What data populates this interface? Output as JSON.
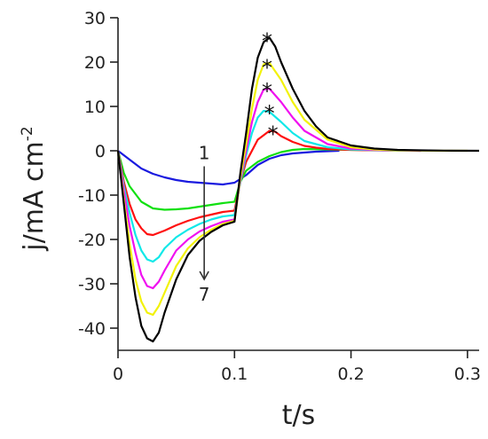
{
  "chart_data": {
    "type": "line",
    "xlabel": "t/s",
    "ylabel_main": "j/mA cm",
    "ylabel_sup": "-2",
    "xlim": [
      0,
      0.31
    ],
    "ylim": [
      -45,
      30
    ],
    "xticks": [
      0,
      0.1,
      0.2,
      0.3
    ],
    "xtick_labels": [
      "0",
      "0.1",
      "0.2",
      "0.3"
    ],
    "yticks": [
      -40,
      -30,
      -20,
      -10,
      0,
      10,
      20,
      30
    ],
    "ytick_labels": [
      "-40",
      "-30",
      "-20",
      "-10",
      "0",
      "10",
      "20",
      "30"
    ],
    "grid": false,
    "annotations": {
      "arrow_start_label": "1",
      "arrow_end_label": "7",
      "peak_marker": "*"
    },
    "arrow": {
      "x": 0.074,
      "y_from": -3.5,
      "y_to": -29
    },
    "series": [
      {
        "color": "#1a1adf",
        "x": [
          0,
          0.01,
          0.02,
          0.03,
          0.04,
          0.05,
          0.06,
          0.07,
          0.08,
          0.09,
          0.1,
          0.11,
          0.12,
          0.13,
          0.14,
          0.15,
          0.16,
          0.17,
          0.18,
          0.19
        ],
        "y": [
          0,
          -2,
          -4,
          -5.2,
          -6,
          -6.6,
          -7,
          -7.2,
          -7.4,
          -7.6,
          -7.2,
          -5.5,
          -3.2,
          -1.8,
          -1.0,
          -0.6,
          -0.4,
          -0.2,
          -0.1,
          0
        ]
      },
      {
        "color": "#10e010",
        "x": [
          0,
          0.005,
          0.01,
          0.02,
          0.03,
          0.04,
          0.05,
          0.06,
          0.07,
          0.08,
          0.09,
          0.1,
          0.105,
          0.11,
          0.12,
          0.13,
          0.14,
          0.15,
          0.16,
          0.18,
          0.2,
          0.22,
          0.24,
          0.26
        ],
        "y": [
          0,
          -5,
          -8,
          -11.5,
          -13,
          -13.3,
          -13.2,
          -13,
          -12.6,
          -12.2,
          -11.8,
          -11.5,
          -7,
          -4.5,
          -2.5,
          -1.2,
          -0.3,
          0.2,
          0.4,
          0.3,
          0.2,
          0.15,
          0.1,
          0.05
        ]
      },
      {
        "color": "#ff1010",
        "x": [
          0,
          0.005,
          0.01,
          0.015,
          0.02,
          0.025,
          0.03,
          0.04,
          0.05,
          0.06,
          0.07,
          0.08,
          0.09,
          0.1,
          0.105,
          0.11,
          0.12,
          0.13,
          0.135,
          0.14,
          0.15,
          0.16,
          0.17,
          0.18,
          0.2,
          0.22,
          0.24,
          0.26
        ],
        "y": [
          0,
          -7,
          -12,
          -15.5,
          -17.5,
          -18.8,
          -19,
          -18,
          -16.8,
          -15.8,
          -15,
          -14.4,
          -13.8,
          -13.5,
          -7,
          -2.5,
          2.5,
          4.5,
          4.3,
          3.3,
          2,
          1.1,
          0.7,
          0.4,
          0.2,
          0.1,
          0.05,
          0
        ]
      },
      {
        "color": "#10e8e8",
        "x": [
          0,
          0.005,
          0.01,
          0.015,
          0.02,
          0.025,
          0.03,
          0.035,
          0.04,
          0.05,
          0.06,
          0.07,
          0.08,
          0.09,
          0.1,
          0.105,
          0.11,
          0.115,
          0.12,
          0.125,
          0.13,
          0.14,
          0.15,
          0.16,
          0.18,
          0.2,
          0.22,
          0.24,
          0.26
        ],
        "y": [
          0,
          -8,
          -14,
          -19,
          -22.5,
          -24.5,
          -25,
          -24,
          -22,
          -19.5,
          -17.8,
          -16.5,
          -15.5,
          -14.8,
          -14.5,
          -7,
          -1,
          4,
          7.5,
          9,
          8.8,
          6.5,
          4,
          2.2,
          0.8,
          0.3,
          0.15,
          0.05,
          0
        ]
      },
      {
        "color": "#f010f0",
        "x": [
          0,
          0.005,
          0.01,
          0.015,
          0.02,
          0.025,
          0.03,
          0.035,
          0.04,
          0.05,
          0.06,
          0.07,
          0.08,
          0.09,
          0.1,
          0.105,
          0.11,
          0.115,
          0.12,
          0.125,
          0.13,
          0.14,
          0.15,
          0.16,
          0.18,
          0.2,
          0.22,
          0.24,
          0.26
        ],
        "y": [
          0,
          -9,
          -17,
          -23,
          -28,
          -30.5,
          -31,
          -29.5,
          -27,
          -22.5,
          -20,
          -18.2,
          -17,
          -16,
          -15.5,
          -6.5,
          0,
          6.5,
          11,
          13.8,
          14,
          11,
          7.5,
          4.5,
          1.5,
          0.5,
          0.2,
          0.1,
          0
        ]
      },
      {
        "color": "#f2f20a",
        "x": [
          0,
          0.005,
          0.01,
          0.015,
          0.02,
          0.025,
          0.03,
          0.035,
          0.04,
          0.05,
          0.06,
          0.07,
          0.08,
          0.09,
          0.1,
          0.105,
          0.11,
          0.115,
          0.12,
          0.125,
          0.13,
          0.14,
          0.15,
          0.16,
          0.18,
          0.2,
          0.22,
          0.24,
          0.26,
          0.28,
          0.3
        ],
        "y": [
          0,
          -11,
          -21,
          -29,
          -34,
          -36.5,
          -37,
          -35,
          -32,
          -26,
          -22,
          -19.5,
          -17.8,
          -16.5,
          -15.8,
          -6,
          1.5,
          9.5,
          16,
          19.5,
          19.8,
          16,
          11,
          7,
          2.5,
          0.8,
          0.3,
          0.1,
          0.05,
          0,
          0
        ]
      },
      {
        "color": "#000000",
        "x": [
          0,
          0.005,
          0.01,
          0.015,
          0.02,
          0.025,
          0.03,
          0.035,
          0.04,
          0.05,
          0.06,
          0.07,
          0.08,
          0.09,
          0.1,
          0.105,
          0.11,
          0.115,
          0.12,
          0.125,
          0.13,
          0.135,
          0.14,
          0.15,
          0.16,
          0.17,
          0.18,
          0.2,
          0.22,
          0.24,
          0.26,
          0.28,
          0.31
        ],
        "y": [
          0,
          -12,
          -24,
          -33,
          -39.5,
          -42.3,
          -43,
          -41,
          -36.5,
          -29,
          -23.5,
          -20.3,
          -18.3,
          -16.8,
          -16,
          -5,
          4,
          14,
          21,
          24.5,
          25.5,
          23.5,
          20,
          14,
          9,
          5.5,
          3,
          1.2,
          0.5,
          0.2,
          0.1,
          0.05,
          0
        ]
      }
    ],
    "peak_markers": [
      {
        "x": 0.128,
        "y": 25.5
      },
      {
        "x": 0.128,
        "y": 19.5
      },
      {
        "x": 0.128,
        "y": 14.2
      },
      {
        "x": 0.13,
        "y": 9.2
      },
      {
        "x": 0.133,
        "y": 4.5
      }
    ]
  }
}
